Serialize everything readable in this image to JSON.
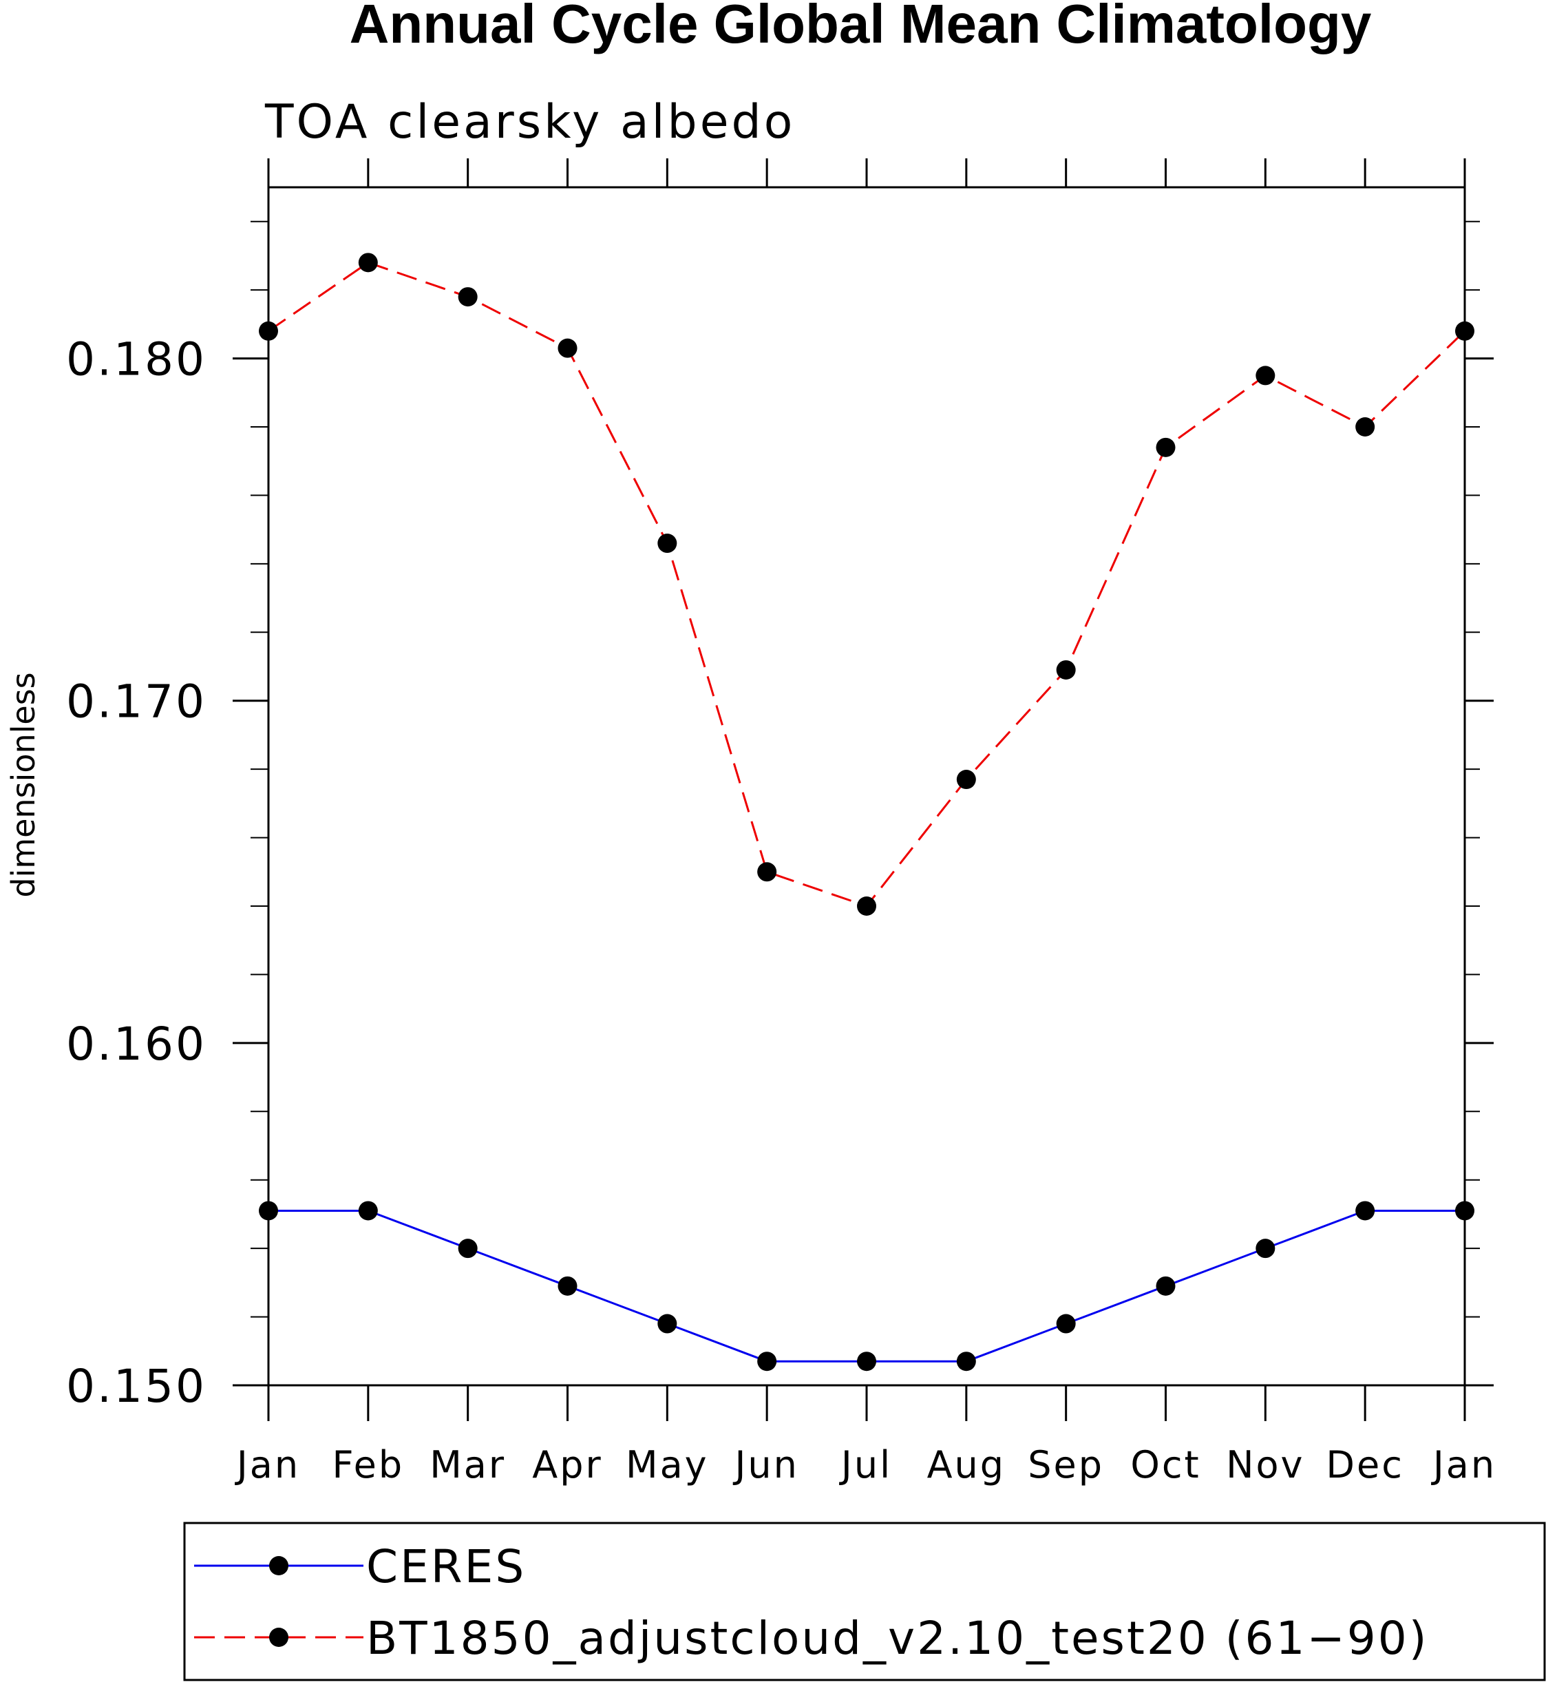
{
  "chart_data": {
    "type": "line",
    "title": "Annual Cycle Global Mean Climatology",
    "subtitle": "TOA clearsky albedo",
    "xlabel": "",
    "ylabel": "dimensionless",
    "categories": [
      "Jan",
      "Feb",
      "Mar",
      "Apr",
      "May",
      "Jun",
      "Jul",
      "Aug",
      "Sep",
      "Oct",
      "Nov",
      "Dec",
      "Jan"
    ],
    "ylim": [
      0.15,
      0.185
    ],
    "yticks": [
      "0.150",
      "0.160",
      "0.170",
      "0.180"
    ],
    "ytick_values": [
      0.15,
      0.16,
      0.17,
      0.18
    ],
    "ytick_minor_step": 0.002,
    "grid": false,
    "legend_position": "bottom",
    "series": [
      {
        "name": "CERES",
        "color": "#0000ee",
        "line_style": "solid",
        "marker": "filled-circle",
        "values": [
          0.1551,
          0.1551,
          0.154,
          0.1529,
          0.1518,
          0.1507,
          0.1507,
          0.1507,
          0.1518,
          0.1529,
          0.154,
          0.1551,
          0.1551
        ]
      },
      {
        "name": "BT1850_adjustcloud_v2.10_test20 (61−90)",
        "color": "#ee0000",
        "line_style": "dashed",
        "marker": "filled-circle",
        "values": [
          0.1808,
          0.1828,
          0.1818,
          0.1803,
          0.1746,
          0.165,
          0.164,
          0.1677,
          0.1709,
          0.1774,
          0.1795,
          0.178,
          0.1808
        ]
      }
    ]
  }
}
